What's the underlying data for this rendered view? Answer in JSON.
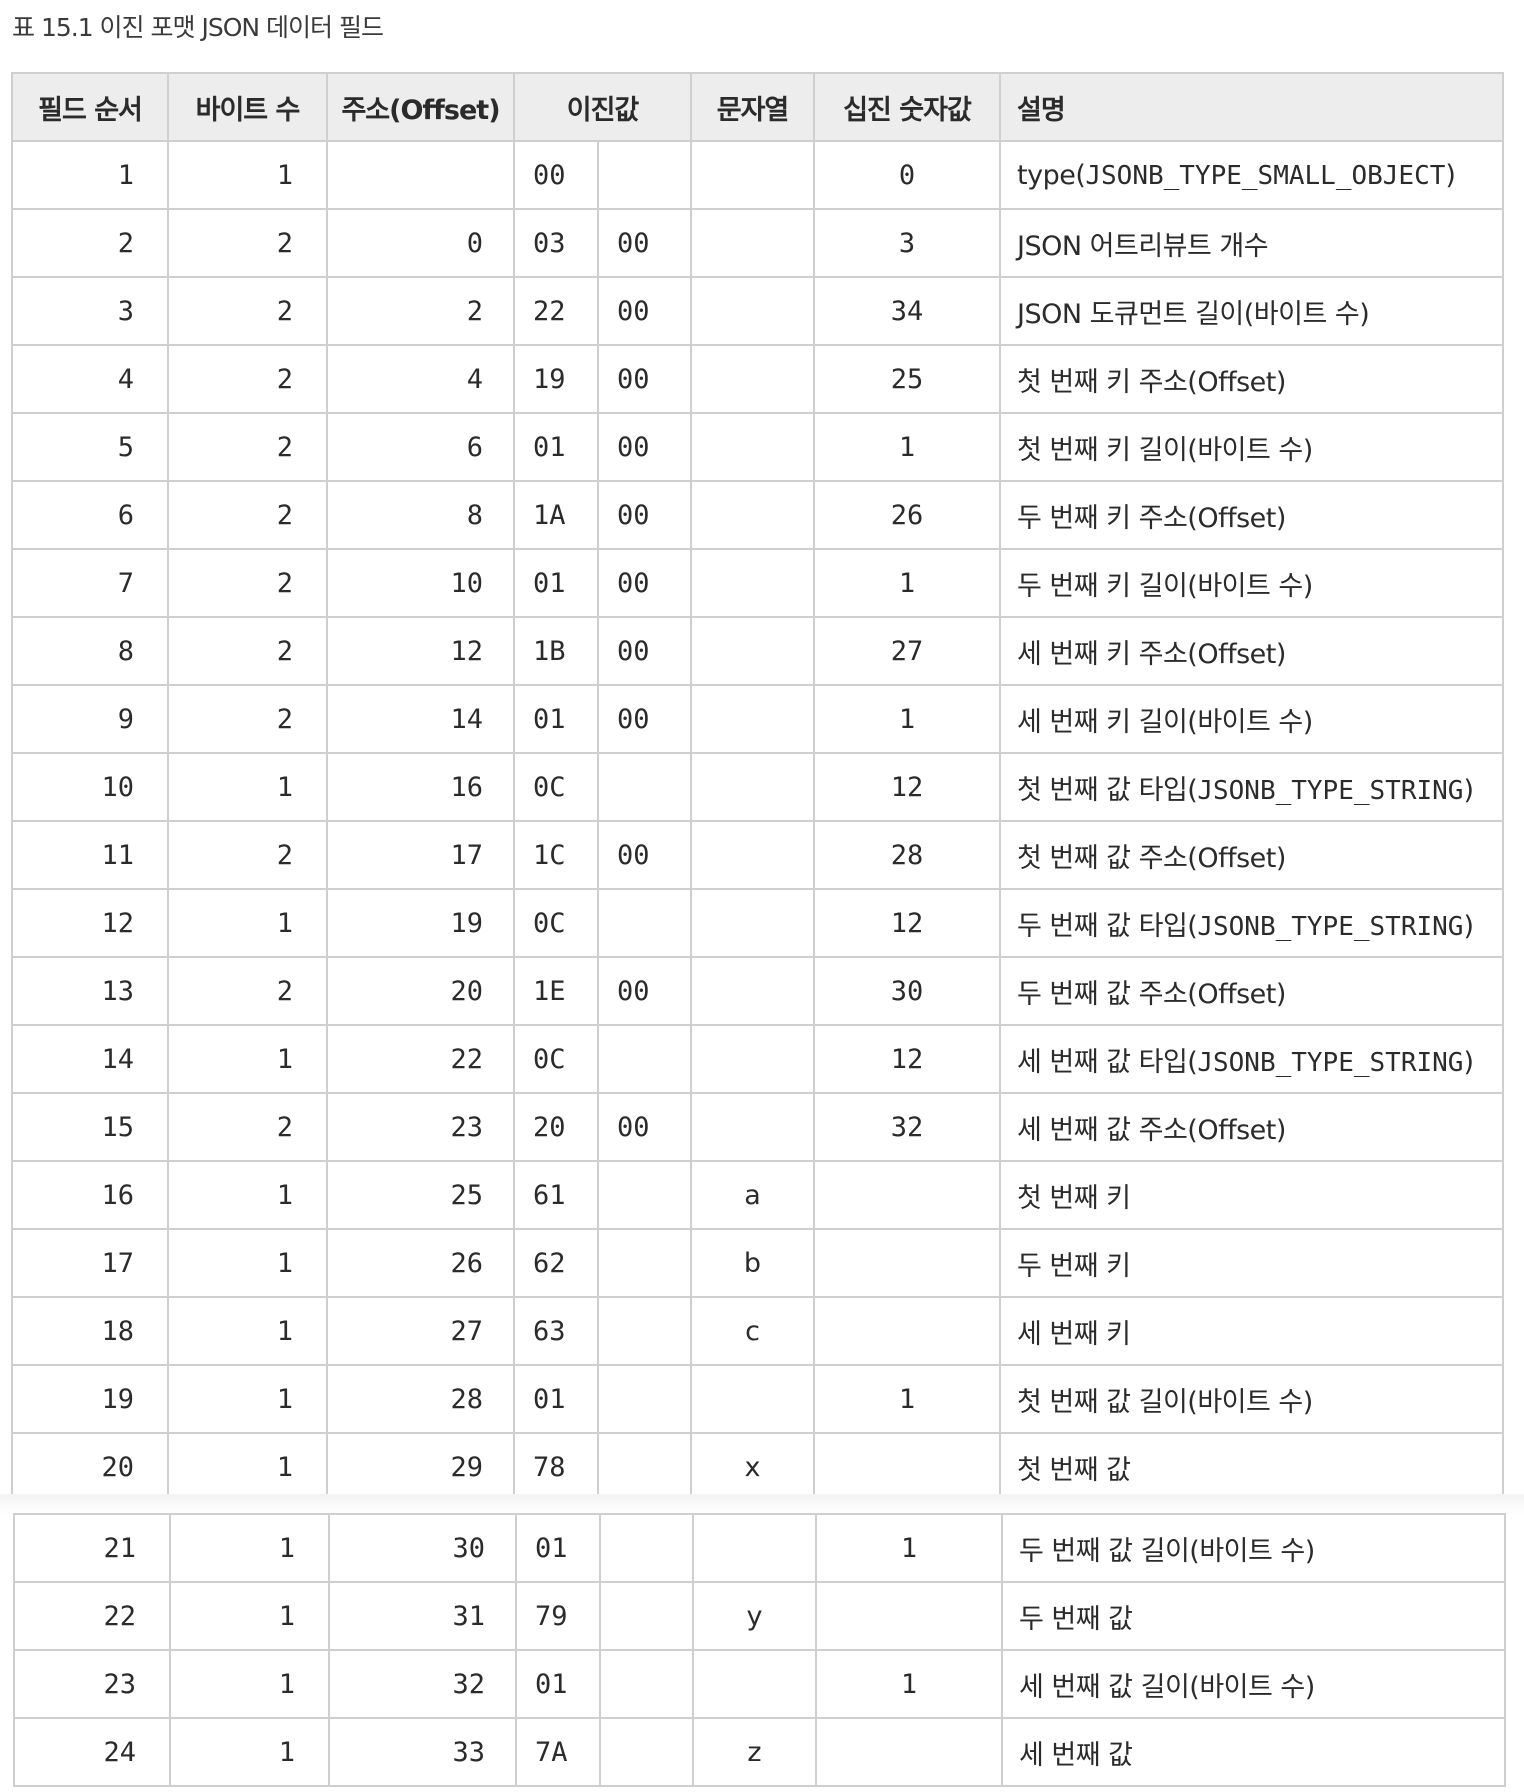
{
  "caption": "표 15.1 이진 포맷 JSON 데이터 필드",
  "headers": {
    "field_order": "필드 순서",
    "byte_count": "바이트 수",
    "offset": "주소(Offset)",
    "binary": "이진값",
    "string": "문자열",
    "decimal": "십진 숫자값",
    "description": "설명"
  },
  "rows": [
    {
      "no": "1",
      "bytes": "1",
      "offset": "",
      "b1": "00",
      "b2": "",
      "str": "",
      "dec": "0",
      "d1": "type(",
      "d2": "JSONB_TYPE_SMALL_OBJECT",
      "d3": ")"
    },
    {
      "no": "2",
      "bytes": "2",
      "offset": "0",
      "b1": "03",
      "b2": "00",
      "str": "",
      "dec": "3",
      "d1": "JSON 어트리뷰트 개수",
      "d2": "",
      "d3": ""
    },
    {
      "no": "3",
      "bytes": "2",
      "offset": "2",
      "b1": "22",
      "b2": "00",
      "str": "",
      "dec": "34",
      "d1": "JSON 도큐먼트 길이(바이트 수)",
      "d2": "",
      "d3": ""
    },
    {
      "no": "4",
      "bytes": "2",
      "offset": "4",
      "b1": "19",
      "b2": "00",
      "str": "",
      "dec": "25",
      "d1": "첫 번째 키 주소(Offset)",
      "d2": "",
      "d3": ""
    },
    {
      "no": "5",
      "bytes": "2",
      "offset": "6",
      "b1": "01",
      "b2": "00",
      "str": "",
      "dec": "1",
      "d1": "첫 번째 키 길이(바이트 수)",
      "d2": "",
      "d3": ""
    },
    {
      "no": "6",
      "bytes": "2",
      "offset": "8",
      "b1": "1A",
      "b2": "00",
      "str": "",
      "dec": "26",
      "d1": "두 번째 키 주소(Offset)",
      "d2": "",
      "d3": ""
    },
    {
      "no": "7",
      "bytes": "2",
      "offset": "10",
      "b1": "01",
      "b2": "00",
      "str": "",
      "dec": "1",
      "d1": "두 번째 키 길이(바이트 수)",
      "d2": "",
      "d3": ""
    },
    {
      "no": "8",
      "bytes": "2",
      "offset": "12",
      "b1": "1B",
      "b2": "00",
      "str": "",
      "dec": "27",
      "d1": "세 번째 키 주소(Offset)",
      "d2": "",
      "d3": ""
    },
    {
      "no": "9",
      "bytes": "2",
      "offset": "14",
      "b1": "01",
      "b2": "00",
      "str": "",
      "dec": "1",
      "d1": "세 번째 키 길이(바이트 수)",
      "d2": "",
      "d3": ""
    },
    {
      "no": "10",
      "bytes": "1",
      "offset": "16",
      "b1": "0C",
      "b2": "",
      "str": "",
      "dec": "12",
      "d1": "첫 번째 값 타입(",
      "d2": "JSONB_TYPE_STRING",
      "d3": ")"
    },
    {
      "no": "11",
      "bytes": "2",
      "offset": "17",
      "b1": "1C",
      "b2": "00",
      "str": "",
      "dec": "28",
      "d1": "첫 번째 값 주소(Offset)",
      "d2": "",
      "d3": ""
    },
    {
      "no": "12",
      "bytes": "1",
      "offset": "19",
      "b1": "0C",
      "b2": "",
      "str": "",
      "dec": "12",
      "d1": "두 번째 값 타입(",
      "d2": "JSONB_TYPE_STRING",
      "d3": ")"
    },
    {
      "no": "13",
      "bytes": "2",
      "offset": "20",
      "b1": "1E",
      "b2": "00",
      "str": "",
      "dec": "30",
      "d1": "두 번째 값 주소(Offset)",
      "d2": "",
      "d3": ""
    },
    {
      "no": "14",
      "bytes": "1",
      "offset": "22",
      "b1": "0C",
      "b2": "",
      "str": "",
      "dec": "12",
      "d1": "세 번째 값 타입(",
      "d2": "JSONB_TYPE_STRING",
      "d3": ")"
    },
    {
      "no": "15",
      "bytes": "2",
      "offset": "23",
      "b1": "20",
      "b2": "00",
      "str": "",
      "dec": "32",
      "d1": "세 번째 값 주소(Offset)",
      "d2": "",
      "d3": ""
    },
    {
      "no": "16",
      "bytes": "1",
      "offset": "25",
      "b1": "61",
      "b2": "",
      "str": "a",
      "dec": "",
      "d1": "첫 번째 키",
      "d2": "",
      "d3": ""
    },
    {
      "no": "17",
      "bytes": "1",
      "offset": "26",
      "b1": "62",
      "b2": "",
      "str": "b",
      "dec": "",
      "d1": "두 번째 키",
      "d2": "",
      "d3": ""
    },
    {
      "no": "18",
      "bytes": "1",
      "offset": "27",
      "b1": "63",
      "b2": "",
      "str": "c",
      "dec": "",
      "d1": "세 번째 키",
      "d2": "",
      "d3": ""
    },
    {
      "no": "19",
      "bytes": "1",
      "offset": "28",
      "b1": "01",
      "b2": "",
      "str": "",
      "dec": "1",
      "d1": "첫 번째 값 길이(바이트 수)",
      "d2": "",
      "d3": ""
    },
    {
      "no": "20",
      "bytes": "1",
      "offset": "29",
      "b1": "78",
      "b2": "",
      "str": "x",
      "dec": "",
      "d1": "첫 번째 값",
      "d2": "",
      "d3": ""
    }
  ],
  "rows_cont": [
    {
      "no": "21",
      "bytes": "1",
      "offset": "30",
      "b1": "01",
      "b2": "",
      "str": "",
      "dec": "1",
      "d1": "두 번째 값 길이(바이트 수)",
      "d2": "",
      "d3": ""
    },
    {
      "no": "22",
      "bytes": "1",
      "offset": "31",
      "b1": "79",
      "b2": "",
      "str": "y",
      "dec": "",
      "d1": "두 번째 값",
      "d2": "",
      "d3": ""
    },
    {
      "no": "23",
      "bytes": "1",
      "offset": "32",
      "b1": "01",
      "b2": "",
      "str": "",
      "dec": "1",
      "d1": "세 번째 값 길이(바이트 수)",
      "d2": "",
      "d3": ""
    },
    {
      "no": "24",
      "bytes": "1",
      "offset": "33",
      "b1": "7A",
      "b2": "",
      "str": "z",
      "dec": "",
      "d1": "세 번째 값",
      "d2": "",
      "d3": ""
    }
  ]
}
